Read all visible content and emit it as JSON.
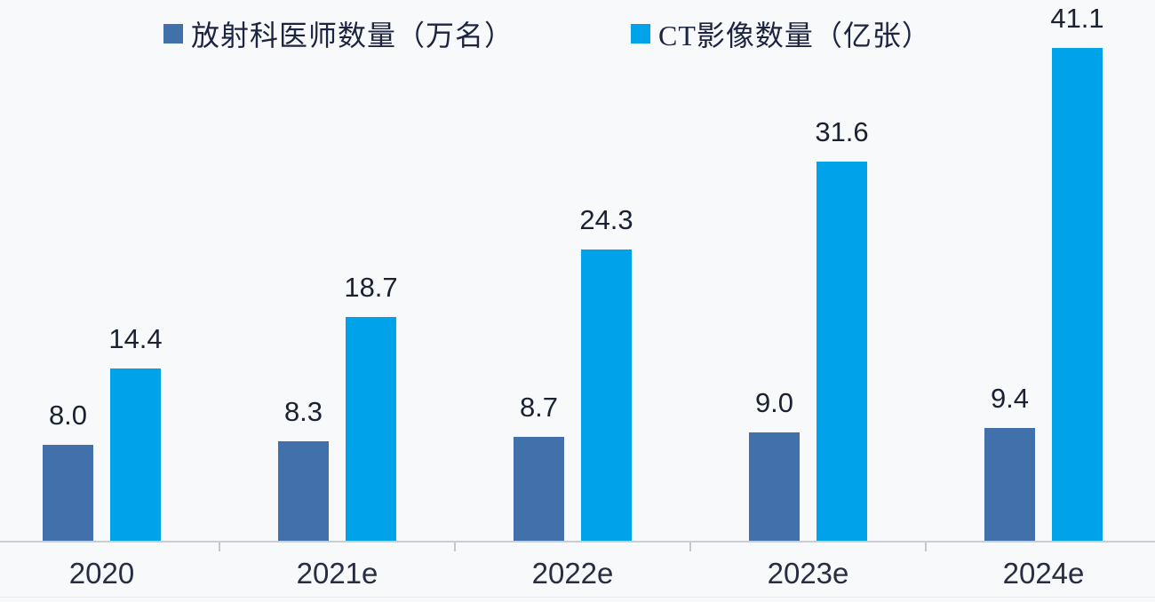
{
  "chart_data": {
    "type": "bar",
    "categories": [
      "2020",
      "2021e",
      "2022e",
      "2023e",
      "2024e"
    ],
    "series": [
      {
        "name": "放射科医师数量（万名）",
        "values": [
          8.0,
          8.3,
          8.7,
          9.0,
          9.4
        ],
        "labels": [
          "8.0",
          "8.3",
          "8.7",
          "9.0",
          "9.4"
        ],
        "color": "#4170ab"
      },
      {
        "name": "CT影像数量（亿张）",
        "values": [
          14.4,
          18.7,
          24.3,
          31.6,
          41.1
        ],
        "labels": [
          "14.4",
          "18.7",
          "24.3",
          "31.6",
          "41.1"
        ],
        "color": "#00a2e9"
      }
    ],
    "title": "",
    "xlabel": "",
    "ylabel": "",
    "ylim": [
      0,
      45
    ],
    "grid": false,
    "legend_position": "top",
    "data_labels_shown": true
  },
  "legend": {
    "items": [
      {
        "label": "放射科医师数量（万名）",
        "color": "#4170ab"
      },
      {
        "label": "CT影像数量（亿张）",
        "color": "#00a2e9"
      }
    ]
  },
  "colors": {
    "background": "#f7f9fb",
    "axis": "#c9ced6",
    "value_text": "#1b2130",
    "category_text": "#282d42",
    "legend_text": "#1c2440"
  }
}
